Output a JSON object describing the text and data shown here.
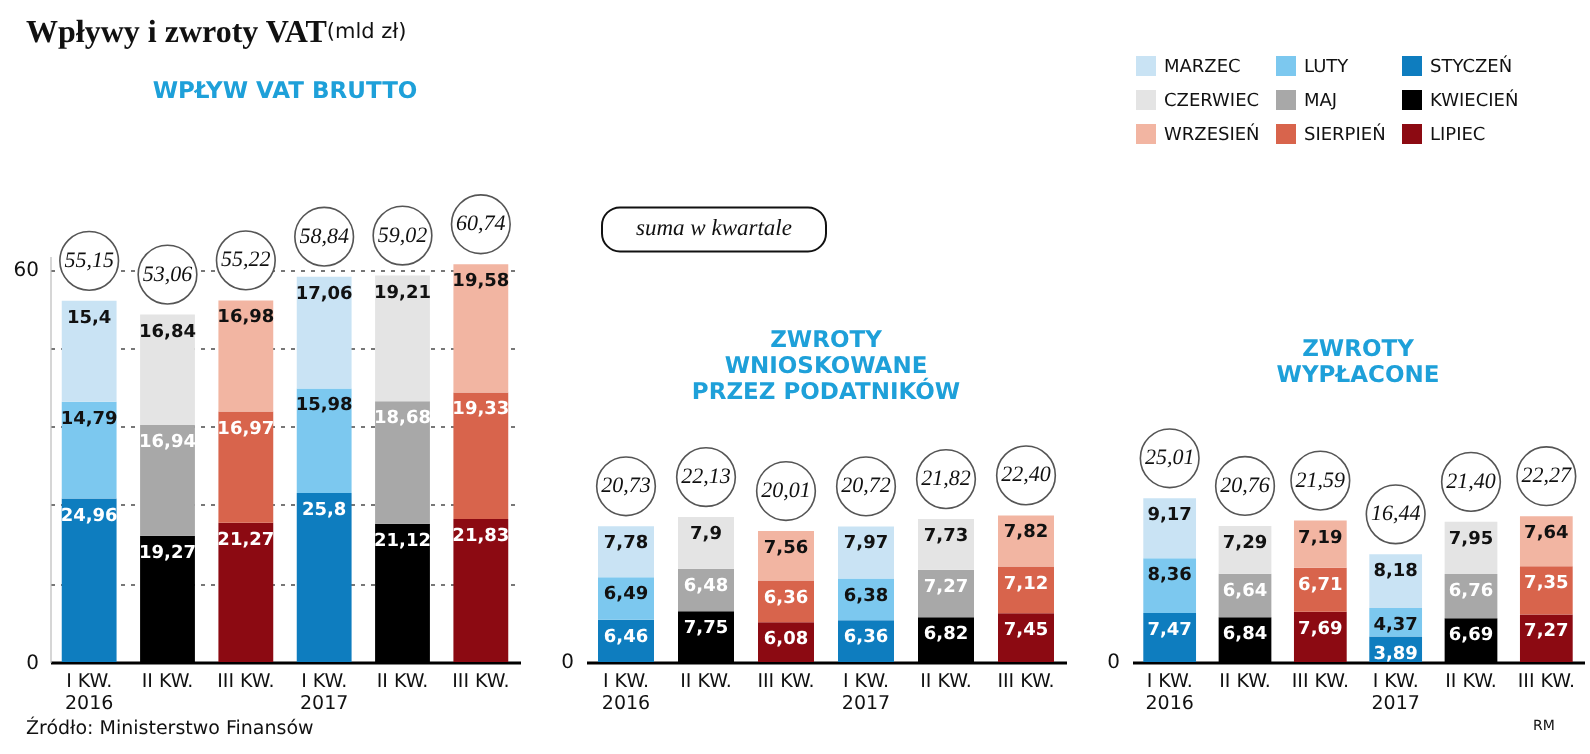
{
  "chart_data": [
    {
      "type": "bar",
      "title": "Wpływy i zwroty VAT",
      "subtitle": "(mld zł)",
      "stacked": true,
      "grid": "y",
      "annotations": [
        "WPŁYW VAT BRUTTO",
        "Źródło: Ministerstwo Finansów"
      ],
      "categories": [
        "I KW.\n2016",
        "II KW.",
        "III KW.",
        "I KW.\n2017",
        "II KW.",
        "III KW."
      ],
      "ylim": [
        0,
        62
      ],
      "yticks": [
        0,
        {
          "value": 12,
          "label": null
        },
        {
          "value": 24,
          "label": null
        },
        {
          "value": 36,
          "label": null
        },
        {
          "value": 48,
          "label": null
        },
        60
      ],
      "totals": [
        "55,15",
        "53,06",
        "55,22",
        "58,84",
        "59,02",
        "60,74"
      ],
      "series": [
        {
          "color": "#0e7dbf",
          "values": [
            24.96,
            null,
            null,
            25.8,
            null,
            null
          ],
          "value_labels": [
            "24,96",
            null,
            null,
            "25,8",
            null,
            null
          ]
        },
        {
          "color": "#7cc8ef",
          "values": [
            14.79,
            null,
            null,
            15.98,
            null,
            null
          ],
          "value_labels": [
            "14,79",
            null,
            null,
            "15,98",
            null,
            null
          ]
        },
        {
          "color": "#c9e3f4",
          "values": [
            15.4,
            null,
            null,
            17.06,
            null,
            null
          ],
          "value_labels": [
            "15,4",
            null,
            null,
            "17,06",
            null,
            null
          ]
        },
        {
          "color": "#000000",
          "values": [
            null,
            19.27,
            null,
            null,
            21.12,
            null
          ],
          "value_labels": [
            null,
            "19,27",
            null,
            null,
            "21,12",
            null
          ]
        },
        {
          "color": "#a8a8a8",
          "values": [
            null,
            16.94,
            null,
            null,
            18.68,
            null
          ],
          "value_labels": [
            null,
            "16,94",
            null,
            null,
            "18,68",
            null
          ]
        },
        {
          "color": "#e4e4e4",
          "values": [
            null,
            16.84,
            null,
            null,
            19.21,
            null
          ],
          "value_labels": [
            null,
            "16,84",
            null,
            null,
            "19,21",
            null
          ]
        },
        {
          "color": "#8c0a12",
          "values": [
            null,
            null,
            21.27,
            null,
            null,
            21.83
          ],
          "value_labels": [
            null,
            null,
            "21,27",
            null,
            null,
            "21,83"
          ]
        },
        {
          "color": "#d8644c",
          "values": [
            null,
            null,
            16.97,
            null,
            null,
            19.33
          ],
          "value_labels": [
            null,
            null,
            "16,97",
            null,
            null,
            "19,33"
          ]
        },
        {
          "color": "#f2b5a2",
          "values": [
            null,
            null,
            16.98,
            null,
            null,
            19.58
          ],
          "value_labels": [
            null,
            null,
            "16,98",
            null,
            null,
            "19,58"
          ]
        }
      ]
    },
    {
      "type": "bar",
      "title": "ZWROTY\nWNIOSKOWANE\nPRZEZ PODATNIKÓW",
      "stacked": true,
      "annotations": [
        "suma w kwartale",
        "0"
      ],
      "categories": [
        "I KW.\n2016",
        "II KW.",
        "III KW.",
        "I KW.\n2017",
        "II KW.",
        "III KW."
      ],
      "totals": [
        "20,73",
        "22,13",
        "20,01",
        "20,72",
        "21,82",
        "22,40"
      ],
      "series": [
        {
          "color": "#0e7dbf",
          "values": [
            6.46,
            null,
            null,
            6.36,
            null,
            null
          ],
          "value_labels": [
            "6,46",
            null,
            null,
            "6,36",
            null,
            null
          ]
        },
        {
          "color": "#7cc8ef",
          "values": [
            6.49,
            null,
            null,
            6.38,
            null,
            null
          ],
          "value_labels": [
            "6,49",
            null,
            null,
            "6,38",
            null,
            null
          ]
        },
        {
          "color": "#c9e3f4",
          "values": [
            7.78,
            null,
            null,
            7.97,
            null,
            null
          ],
          "value_labels": [
            "7,78",
            null,
            null,
            "7,97",
            null,
            null
          ]
        },
        {
          "color": "#000000",
          "values": [
            null,
            7.75,
            null,
            null,
            6.82,
            null
          ],
          "value_labels": [
            null,
            "7,75",
            null,
            null,
            "6,82",
            null
          ]
        },
        {
          "color": "#a8a8a8",
          "values": [
            null,
            6.48,
            null,
            null,
            7.27,
            null
          ],
          "value_labels": [
            null,
            "6,48",
            null,
            null,
            "7,27",
            null
          ]
        },
        {
          "color": "#e4e4e4",
          "values": [
            null,
            7.9,
            null,
            null,
            7.73,
            null
          ],
          "value_labels": [
            null,
            "7,9",
            null,
            null,
            "7,73",
            null
          ]
        },
        {
          "color": "#8c0a12",
          "values": [
            null,
            null,
            6.08,
            null,
            null,
            7.45
          ],
          "value_labels": [
            null,
            null,
            "6,08",
            null,
            null,
            "7,45"
          ]
        },
        {
          "color": "#d8644c",
          "values": [
            null,
            null,
            6.36,
            null,
            null,
            7.12
          ],
          "value_labels": [
            null,
            null,
            "6,36",
            null,
            null,
            "7,12"
          ]
        },
        {
          "color": "#f2b5a2",
          "values": [
            null,
            null,
            7.56,
            null,
            null,
            7.82
          ],
          "value_labels": [
            null,
            null,
            "7,56",
            null,
            null,
            "7,82"
          ]
        }
      ]
    },
    {
      "type": "bar",
      "title": "ZWROTY\nWYPŁACONE",
      "stacked": true,
      "legend": "top",
      "annotations": [
        "0",
        "RM"
      ],
      "categories": [
        "I KW.\n2016",
        "II KW.",
        "III KW.",
        "I KW.\n2017",
        "II KW.",
        "III KW."
      ],
      "totals": [
        "25,01",
        "20,76",
        "21,59",
        "16,44",
        "21,40",
        "22,27"
      ],
      "series": [
        {
          "name": "STYCZEŃ",
          "color": "#0e7dbf",
          "values": [
            7.47,
            null,
            null,
            3.89,
            null,
            null
          ],
          "value_labels": [
            "7,47",
            null,
            null,
            "3,89",
            null,
            null
          ]
        },
        {
          "name": "LUTY",
          "color": "#7cc8ef",
          "values": [
            8.36,
            null,
            null,
            4.37,
            null,
            null
          ],
          "value_labels": [
            "8,36",
            null,
            null,
            "4,37",
            null,
            null
          ]
        },
        {
          "name": "MARZEC",
          "color": "#c9e3f4",
          "values": [
            9.17,
            null,
            null,
            8.18,
            null,
            null
          ],
          "value_labels": [
            "9,17",
            null,
            null,
            "8,18",
            null,
            null
          ]
        },
        {
          "name": "KWIECIEŃ",
          "color": "#000000",
          "values": [
            null,
            6.84,
            null,
            null,
            6.69,
            null
          ],
          "value_labels": [
            null,
            "6,84",
            null,
            null,
            "6,69",
            null
          ]
        },
        {
          "name": "MAJ",
          "color": "#a8a8a8",
          "values": [
            null,
            6.64,
            null,
            null,
            6.76,
            null
          ],
          "value_labels": [
            null,
            "6,64",
            null,
            null,
            "6,76",
            null
          ]
        },
        {
          "name": "CZERWIEC",
          "color": "#e4e4e4",
          "values": [
            null,
            7.29,
            null,
            null,
            7.95,
            null
          ],
          "value_labels": [
            null,
            "7,29",
            null,
            null,
            "7,95",
            null
          ]
        },
        {
          "name": "LIPIEC",
          "color": "#8c0a12",
          "values": [
            null,
            null,
            7.69,
            null,
            null,
            7.27
          ],
          "value_labels": [
            null,
            null,
            "7,69",
            null,
            null,
            "7,27"
          ]
        },
        {
          "name": "SIERPIEŃ",
          "color": "#d8644c",
          "values": [
            null,
            null,
            6.71,
            null,
            null,
            7.35
          ],
          "value_labels": [
            null,
            null,
            "6,71",
            null,
            null,
            "7,35"
          ]
        },
        {
          "name": "WRZESIEŃ",
          "color": "#f2b5a2",
          "values": [
            null,
            null,
            7.19,
            null,
            null,
            7.64
          ],
          "value_labels": [
            null,
            null,
            "7,19",
            null,
            null,
            "7,64"
          ]
        }
      ]
    }
  ]
}
